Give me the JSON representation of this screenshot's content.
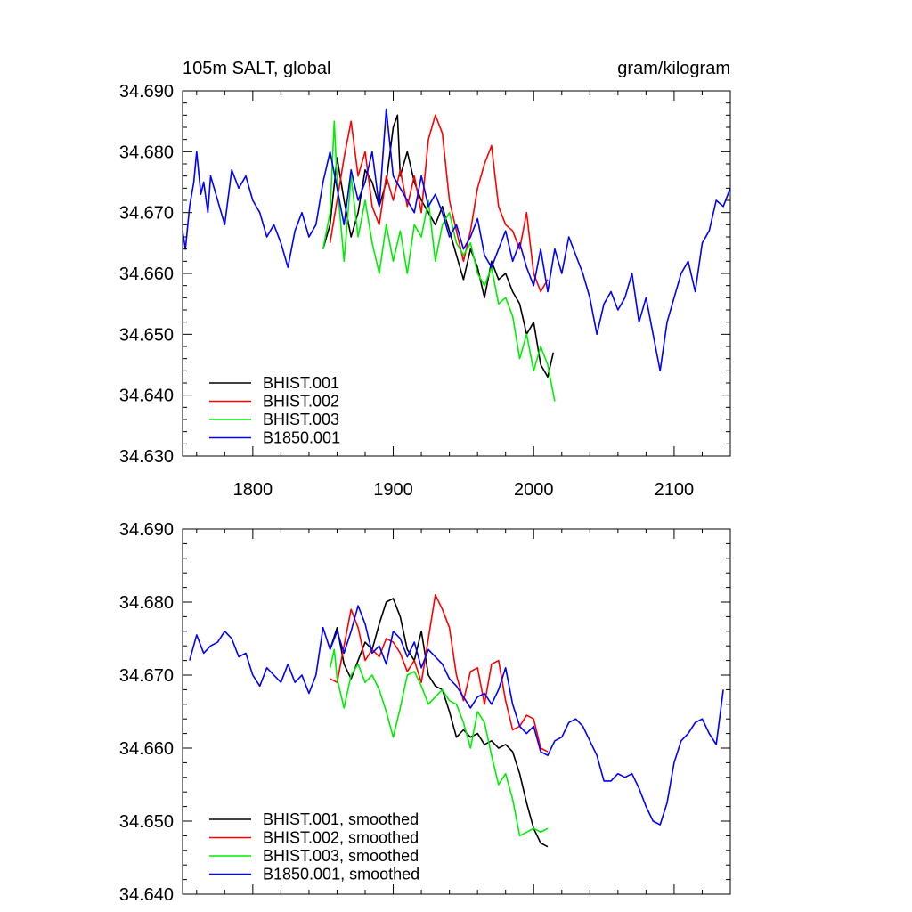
{
  "chart_data": [
    {
      "type": "line",
      "title_left": "105m SALT, global",
      "title_right": "gram/kilogram",
      "xlim": [
        1750,
        2140
      ],
      "ylim": [
        34.63,
        34.69
      ],
      "xticks": [
        1800,
        1900,
        2000,
        2100
      ],
      "xtick_labels": [
        "1800",
        "1900",
        "2000",
        "2100"
      ],
      "yticks": [
        34.63,
        34.64,
        34.65,
        34.66,
        34.67,
        34.68,
        34.69
      ],
      "ytick_labels": [
        "34.630",
        "34.640",
        "34.650",
        "34.660",
        "34.670",
        "34.680",
        "34.690"
      ],
      "legend_position": "bottom-left",
      "series": [
        {
          "name": "BHIST.001",
          "color": "#000000",
          "x": [
            1850,
            1855,
            1860,
            1865,
            1870,
            1875,
            1880,
            1885,
            1890,
            1895,
            1900,
            1903,
            1905,
            1910,
            1915,
            1920,
            1925,
            1930,
            1935,
            1940,
            1945,
            1950,
            1955,
            1960,
            1965,
            1970,
            1975,
            1980,
            1985,
            1990,
            1995,
            2000,
            2005,
            2010,
            2014
          ],
          "y": [
            34.664,
            34.668,
            34.679,
            34.672,
            34.666,
            34.67,
            34.677,
            34.675,
            34.671,
            34.675,
            34.684,
            34.686,
            34.676,
            34.68,
            34.675,
            34.672,
            34.67,
            34.668,
            34.671,
            34.667,
            34.663,
            34.659,
            34.664,
            34.661,
            34.656,
            34.662,
            34.659,
            34.66,
            34.657,
            34.655,
            34.65,
            34.652,
            34.645,
            34.643,
            34.647
          ]
        },
        {
          "name": "BHIST.002",
          "color": "#ff0000",
          "x": [
            1855,
            1860,
            1865,
            1870,
            1875,
            1880,
            1885,
            1890,
            1895,
            1900,
            1905,
            1910,
            1915,
            1920,
            1925,
            1930,
            1935,
            1940,
            1945,
            1950,
            1955,
            1960,
            1965,
            1970,
            1975,
            1980,
            1985,
            1990,
            1995,
            2000,
            2005,
            2010
          ],
          "y": [
            34.665,
            34.672,
            34.679,
            34.685,
            34.676,
            34.68,
            34.671,
            34.668,
            34.676,
            34.672,
            34.677,
            34.671,
            34.676,
            34.67,
            34.682,
            34.686,
            34.683,
            34.672,
            34.667,
            34.662,
            34.667,
            34.674,
            34.678,
            34.681,
            34.671,
            34.668,
            34.667,
            34.664,
            34.67,
            34.66,
            34.657,
            34.659
          ]
        },
        {
          "name": "BHIST.003",
          "color": "#00ee00",
          "x": [
            1850,
            1855,
            1858,
            1860,
            1865,
            1870,
            1875,
            1880,
            1885,
            1890,
            1895,
            1900,
            1905,
            1910,
            1915,
            1920,
            1925,
            1930,
            1935,
            1940,
            1945,
            1950,
            1955,
            1960,
            1965,
            1970,
            1975,
            1980,
            1985,
            1990,
            1995,
            2000,
            2005,
            2010,
            2015
          ],
          "y": [
            34.664,
            34.67,
            34.685,
            34.675,
            34.662,
            34.676,
            34.666,
            34.672,
            34.665,
            34.66,
            34.668,
            34.662,
            34.667,
            34.66,
            34.668,
            34.666,
            34.672,
            34.662,
            34.668,
            34.67,
            34.665,
            34.663,
            34.665,
            34.66,
            34.658,
            34.661,
            34.655,
            34.656,
            34.653,
            34.646,
            34.65,
            34.644,
            34.648,
            34.645,
            34.639
          ]
        },
        {
          "name": "B1850.001",
          "color": "#0000ff",
          "x": [
            1750,
            1752,
            1755,
            1758,
            1760,
            1763,
            1765,
            1768,
            1770,
            1775,
            1780,
            1785,
            1790,
            1795,
            1800,
            1805,
            1810,
            1815,
            1820,
            1825,
            1830,
            1835,
            1840,
            1845,
            1850,
            1855,
            1860,
            1865,
            1870,
            1875,
            1880,
            1885,
            1890,
            1895,
            1900,
            1905,
            1910,
            1915,
            1920,
            1925,
            1930,
            1935,
            1940,
            1945,
            1950,
            1955,
            1960,
            1965,
            1970,
            1975,
            1980,
            1985,
            1990,
            1995,
            2000,
            2005,
            2010,
            2015,
            2020,
            2025,
            2030,
            2035,
            2040,
            2045,
            2050,
            2055,
            2060,
            2065,
            2070,
            2075,
            2080,
            2085,
            2090,
            2095,
            2100,
            2105,
            2110,
            2115,
            2120,
            2125,
            2130,
            2135,
            2140
          ],
          "y": [
            34.667,
            34.664,
            34.671,
            34.675,
            34.68,
            34.673,
            34.675,
            34.67,
            34.676,
            34.672,
            34.668,
            34.677,
            34.674,
            34.676,
            34.672,
            34.67,
            34.666,
            34.668,
            34.665,
            34.661,
            34.667,
            34.67,
            34.666,
            34.668,
            34.675,
            34.68,
            34.674,
            34.668,
            34.677,
            34.672,
            34.675,
            34.68,
            34.671,
            34.687,
            34.676,
            34.674,
            34.672,
            34.67,
            34.676,
            34.671,
            34.673,
            34.67,
            34.666,
            34.668,
            34.664,
            34.666,
            34.669,
            34.663,
            34.661,
            34.664,
            34.667,
            34.662,
            34.665,
            34.661,
            34.658,
            34.664,
            34.657,
            34.664,
            34.66,
            34.666,
            34.663,
            34.66,
            34.656,
            34.65,
            34.655,
            34.657,
            34.654,
            34.656,
            34.66,
            34.652,
            34.656,
            34.65,
            34.644,
            34.652,
            34.656,
            34.66,
            34.662,
            34.657,
            34.665,
            34.667,
            34.672,
            34.671,
            34.674
          ]
        }
      ]
    },
    {
      "type": "line",
      "xlim": [
        1750,
        2140
      ],
      "ylim": [
        34.64,
        34.69
      ],
      "xticks": [
        1800,
        1900,
        2000,
        2100
      ],
      "yticks": [
        34.64,
        34.65,
        34.66,
        34.67,
        34.68,
        34.69
      ],
      "ytick_labels": [
        "34.640",
        "34.650",
        "34.660",
        "34.670",
        "34.680",
        "34.690"
      ],
      "legend_position": "bottom-left",
      "series": [
        {
          "name": "BHIST.001, smoothed",
          "color": "#000000",
          "x": [
            1855,
            1860,
            1865,
            1870,
            1875,
            1880,
            1885,
            1890,
            1895,
            1900,
            1905,
            1910,
            1915,
            1920,
            1925,
            1930,
            1935,
            1940,
            1945,
            1950,
            1955,
            1960,
            1965,
            1970,
            1975,
            1980,
            1985,
            1990,
            1995,
            2000,
            2005,
            2010
          ],
          "y": [
            34.6735,
            34.6765,
            34.6715,
            34.6695,
            34.672,
            34.6745,
            34.6735,
            34.677,
            34.68,
            34.6805,
            34.678,
            34.6735,
            34.672,
            34.676,
            34.67,
            34.6685,
            34.668,
            34.665,
            34.6615,
            34.6625,
            34.6615,
            34.662,
            34.6605,
            34.661,
            34.66,
            34.6605,
            34.6595,
            34.6565,
            34.6525,
            34.649,
            34.647,
            34.6465
          ]
        },
        {
          "name": "BHIST.002, smoothed",
          "color": "#ff0000",
          "x": [
            1855,
            1860,
            1865,
            1870,
            1875,
            1880,
            1885,
            1890,
            1895,
            1900,
            1905,
            1910,
            1915,
            1920,
            1925,
            1930,
            1935,
            1940,
            1945,
            1950,
            1955,
            1960,
            1965,
            1970,
            1975,
            1980,
            1985,
            1990,
            1995,
            2000,
            2005,
            2010
          ],
          "y": [
            34.6695,
            34.669,
            34.674,
            34.679,
            34.6765,
            34.672,
            34.6735,
            34.6725,
            34.675,
            34.6745,
            34.673,
            34.6705,
            34.672,
            34.669,
            34.675,
            34.681,
            34.679,
            34.6765,
            34.67,
            34.6665,
            34.6705,
            34.671,
            34.666,
            34.6715,
            34.672,
            34.6665,
            34.6625,
            34.663,
            34.6645,
            34.664,
            34.66,
            34.6595
          ]
        },
        {
          "name": "BHIST.003, smoothed",
          "color": "#00ee00",
          "x": [
            1855,
            1858,
            1860,
            1865,
            1870,
            1875,
            1880,
            1885,
            1890,
            1895,
            1900,
            1905,
            1910,
            1915,
            1920,
            1925,
            1930,
            1935,
            1940,
            1945,
            1950,
            1955,
            1960,
            1965,
            1970,
            1975,
            1980,
            1985,
            1990,
            1995,
            2000,
            2005,
            2010
          ],
          "y": [
            34.671,
            34.6735,
            34.6695,
            34.6655,
            34.67,
            34.6715,
            34.669,
            34.67,
            34.668,
            34.665,
            34.6615,
            34.6655,
            34.67,
            34.6705,
            34.6685,
            34.666,
            34.667,
            34.668,
            34.6665,
            34.666,
            34.6635,
            34.66,
            34.665,
            34.6635,
            34.659,
            34.655,
            34.6565,
            34.653,
            34.648,
            34.6485,
            34.649,
            34.6485,
            34.649
          ]
        },
        {
          "name": "B1850.001, smoothed",
          "color": "#0000ff",
          "x": [
            1755,
            1760,
            1765,
            1770,
            1775,
            1780,
            1785,
            1790,
            1795,
            1800,
            1805,
            1810,
            1815,
            1820,
            1825,
            1830,
            1835,
            1840,
            1845,
            1850,
            1855,
            1860,
            1865,
            1870,
            1875,
            1880,
            1885,
            1890,
            1895,
            1900,
            1905,
            1910,
            1915,
            1920,
            1925,
            1930,
            1935,
            1940,
            1945,
            1950,
            1955,
            1960,
            1965,
            1970,
            1975,
            1980,
            1985,
            1990,
            1995,
            2000,
            2005,
            2010,
            2015,
            2020,
            2025,
            2030,
            2035,
            2040,
            2045,
            2050,
            2055,
            2060,
            2065,
            2070,
            2075,
            2080,
            2085,
            2090,
            2095,
            2100,
            2105,
            2110,
            2115,
            2120,
            2125,
            2130,
            2135
          ],
          "y": [
            34.672,
            34.6755,
            34.673,
            34.674,
            34.6745,
            34.676,
            34.675,
            34.6725,
            34.673,
            34.67,
            34.6685,
            34.671,
            34.67,
            34.669,
            34.6715,
            34.669,
            34.67,
            34.6675,
            34.67,
            34.6765,
            34.6735,
            34.676,
            34.673,
            34.676,
            34.6795,
            34.677,
            34.673,
            34.674,
            34.6715,
            34.676,
            34.675,
            34.6725,
            34.6745,
            34.671,
            34.6735,
            34.6725,
            34.6715,
            34.6695,
            34.6685,
            34.667,
            34.6655,
            34.667,
            34.6675,
            34.666,
            34.668,
            34.671,
            34.666,
            34.663,
            34.662,
            34.663,
            34.6595,
            34.659,
            34.661,
            34.6615,
            34.6635,
            34.664,
            34.663,
            34.661,
            34.659,
            34.6555,
            34.6555,
            34.6565,
            34.656,
            34.6565,
            34.6545,
            34.652,
            34.65,
            34.6495,
            34.6525,
            34.658,
            34.661,
            34.662,
            34.6635,
            34.664,
            34.662,
            34.6605,
            34.668
          ]
        }
      ]
    }
  ]
}
